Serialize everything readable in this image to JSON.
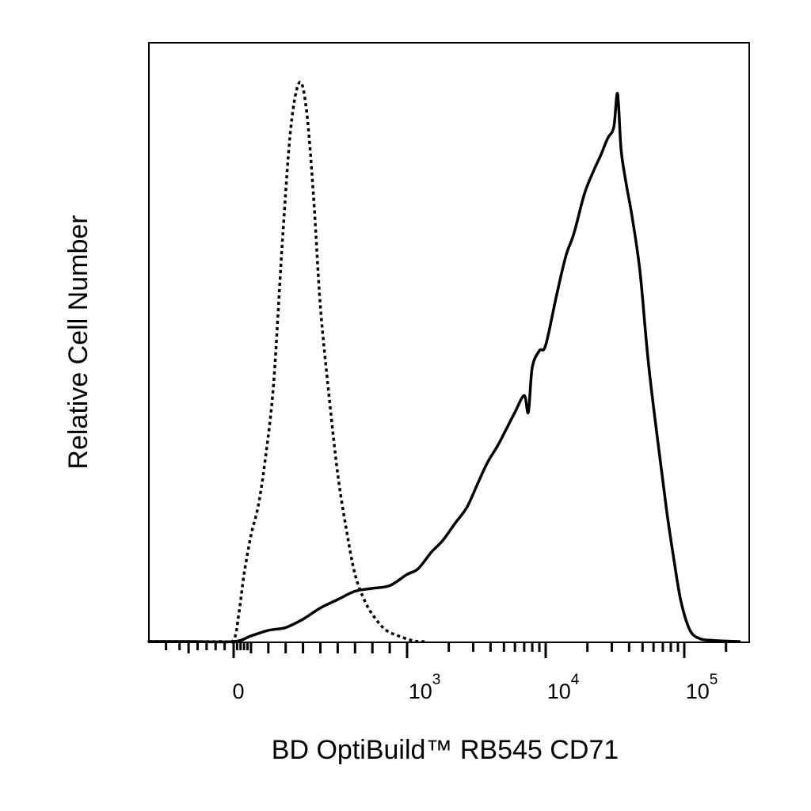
{
  "chart_data": {
    "type": "line",
    "title": "",
    "xlabel": "BD OptiBuild™ RB545 CD71",
    "ylabel": "Relative Cell Number",
    "x_scale": "biexponential",
    "xlim": [
      -300,
      250000
    ],
    "ylim": [
      0,
      100
    ],
    "grid": false,
    "legend": "none",
    "x_tick_labels": [
      {
        "value": 0,
        "base": "0",
        "exp": ""
      },
      {
        "value": 1000,
        "base": "10",
        "exp": "3"
      },
      {
        "value": 10000,
        "base": "10",
        "exp": "4"
      },
      {
        "value": 100000,
        "base": "10",
        "exp": "5"
      }
    ],
    "series": [
      {
        "style": "dotted",
        "color": "#000000",
        "x": [
          -300,
          -150,
          -30,
          0,
          30,
          60,
          100,
          140,
          180,
          230,
          280,
          330,
          380,
          420,
          460,
          500,
          550,
          600,
          650,
          700,
          760,
          820,
          880,
          950,
          1050,
          1200,
          1400
        ],
        "y": [
          0,
          0,
          0,
          0.3,
          5,
          12,
          19,
          24,
          32,
          46,
          71,
          92,
          100,
          95,
          80,
          60,
          44,
          30,
          20,
          12,
          7,
          4,
          2,
          1,
          0.3,
          0,
          0
        ]
      },
      {
        "style": "solid",
        "color": "#000000",
        "x": [
          -300,
          -100,
          0,
          100,
          200,
          300,
          400,
          500,
          600,
          700,
          800,
          900,
          1000,
          1200,
          1500,
          1800,
          2200,
          2700,
          3200,
          3800,
          4500,
          5200,
          6000,
          7000,
          7500,
          8000,
          9000,
          10000,
          12000,
          14000,
          16000,
          19000,
          22000,
          25000,
          28000,
          31000,
          33000,
          35000,
          38000,
          42000,
          48000,
          55000,
          65000,
          75000,
          85000,
          95000,
          110000,
          130000,
          160000,
          250000
        ],
        "y": [
          0,
          0,
          0,
          1,
          2,
          2.5,
          4,
          6,
          7.5,
          9,
          9.5,
          10,
          12,
          13,
          16,
          18,
          21,
          24,
          28,
          32,
          35,
          38,
          41,
          44,
          41,
          49,
          52,
          53,
          62,
          69,
          73,
          80,
          84,
          87,
          90,
          92,
          98,
          88,
          82,
          76,
          66,
          50,
          35,
          23,
          14,
          7,
          2,
          0.5,
          0.2,
          0
        ]
      }
    ]
  }
}
